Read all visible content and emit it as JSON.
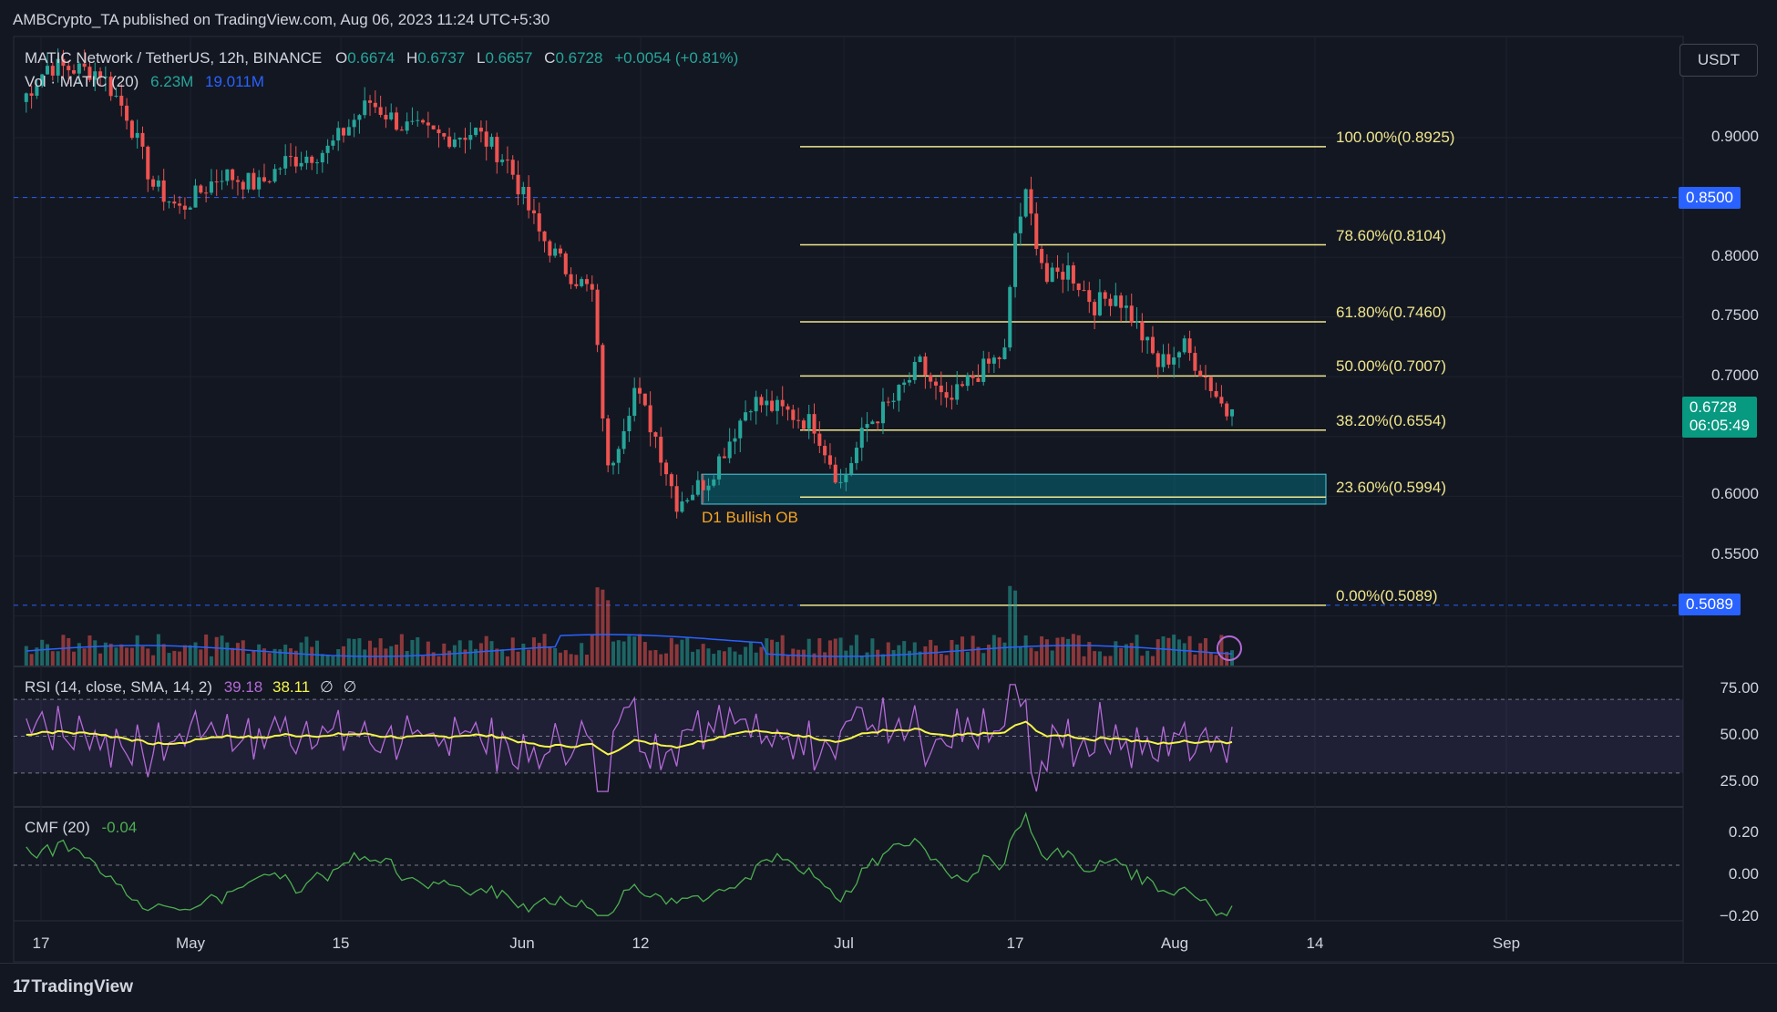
{
  "header": {
    "published": "AMBCrypto_TA published on TradingView.com, Aug 06, 2023 11:24 UTC+5:30",
    "symbol": "MATIC Network / TetherUS, 12h, BINANCE",
    "o_label": "O",
    "o_val": "0.6674",
    "h_label": "H",
    "h_val": "0.6737",
    "l_label": "L",
    "l_val": "0.6657",
    "c_label": "C",
    "c_val": "0.6728",
    "change": "+0.0054 (+0.81%)",
    "vol_label": "Vol · MATIC (20)",
    "vol_val1": "6.23M",
    "vol_val2": "19.011M"
  },
  "currency_button": "USDT",
  "price_axis": {
    "ticks": [
      "0.9000",
      "0.8000",
      "0.7500",
      "0.7000",
      "0.6000",
      "0.5500"
    ],
    "marker_high": "0.8500",
    "marker_low": "0.5089",
    "last_price": "0.6728",
    "countdown": "06:05:49"
  },
  "fib": {
    "levels": [
      {
        "label": "100.00%(0.8925)",
        "value": 0.8925
      },
      {
        "label": "78.60%(0.8104)",
        "value": 0.8104
      },
      {
        "label": "61.80%(0.7460)",
        "value": 0.746
      },
      {
        "label": "50.00%(0.7007)",
        "value": 0.7007
      },
      {
        "label": "38.20%(0.6554)",
        "value": 0.6554
      },
      {
        "label": "23.60%(0.5994)",
        "value": 0.5994
      },
      {
        "label": "0.00%(0.5089)",
        "value": 0.5089
      }
    ]
  },
  "ob_zone": {
    "label": "D1 Bullish OB",
    "top": 0.6185,
    "bottom": 0.5935
  },
  "rsi": {
    "label": "RSI (14, close, SMA, 14, 2)",
    "val1": "39.18",
    "val2": "38.11",
    "val3": "∅",
    "val4": "∅",
    "ticks": [
      "75.00",
      "50.00",
      "25.00"
    ]
  },
  "cmf": {
    "label": "CMF (20)",
    "val": "-0.04",
    "ticks": [
      "0.20",
      "0.00",
      "−0.20"
    ]
  },
  "time_axis": [
    "17",
    "May",
    "15",
    "Jun",
    "12",
    "Jul",
    "17",
    "Aug",
    "14",
    "Sep"
  ],
  "footer": {
    "brand": "TradingView"
  },
  "colors": {
    "bg": "#131722",
    "up": "#26a69a",
    "down": "#ef5350",
    "fib": "#f0e68c",
    "rsi": "#b36ad6",
    "rsi_ma": "#f5f54a",
    "cmf": "#4caf50",
    "vol_ma": "#2962ff",
    "accent": "#2962ff"
  },
  "chart_data": {
    "type": "candlestick",
    "title": "MATIC Network / TetherUS, 12h, BINANCE",
    "ylim": [
      0.46,
      0.97
    ],
    "x_range": [
      "Apr 17 2023",
      "Sep 10 2023"
    ],
    "candles": [
      {
        "t": "May 07",
        "o": 0.955,
        "h": 0.98,
        "l": 0.92,
        "c": 0.93
      },
      {
        "t": "May 11",
        "o": 0.9,
        "h": 0.91,
        "l": 0.83,
        "c": 0.85
      },
      {
        "t": "May 15",
        "o": 0.86,
        "h": 0.88,
        "l": 0.84,
        "c": 0.87
      },
      {
        "t": "May 20",
        "o": 0.87,
        "h": 0.89,
        "l": 0.85,
        "c": 0.86
      },
      {
        "t": "May 26",
        "o": 0.89,
        "h": 0.96,
        "l": 0.87,
        "c": 0.93
      },
      {
        "t": "May 30",
        "o": 0.92,
        "h": 0.94,
        "l": 0.89,
        "c": 0.9
      },
      {
        "t": "Jun 04",
        "o": 0.91,
        "h": 0.915,
        "l": 0.89,
        "c": 0.9
      },
      {
        "t": "Jun 07",
        "o": 0.82,
        "h": 0.83,
        "l": 0.76,
        "c": 0.78
      },
      {
        "t": "Jun 10",
        "o": 0.78,
        "h": 0.79,
        "l": 0.52,
        "c": 0.62
      },
      {
        "t": "Jun 13",
        "o": 0.66,
        "h": 0.72,
        "l": 0.63,
        "c": 0.7
      },
      {
        "t": "Jun 16",
        "o": 0.62,
        "h": 0.63,
        "l": 0.565,
        "c": 0.585
      },
      {
        "t": "Jun 20",
        "o": 0.61,
        "h": 0.64,
        "l": 0.6,
        "c": 0.62
      },
      {
        "t": "Jun 24",
        "o": 0.64,
        "h": 0.71,
        "l": 0.63,
        "c": 0.68
      },
      {
        "t": "Jun 30",
        "o": 0.66,
        "h": 0.67,
        "l": 0.6,
        "c": 0.62
      },
      {
        "t": "Jul 04",
        "o": 0.68,
        "h": 0.72,
        "l": 0.67,
        "c": 0.71
      },
      {
        "t": "Jul 08",
        "o": 0.67,
        "h": 0.68,
        "l": 0.65,
        "c": 0.67
      },
      {
        "t": "Jul 12",
        "o": 0.7,
        "h": 0.75,
        "l": 0.7,
        "c": 0.74
      },
      {
        "t": "Jul 14",
        "o": 0.78,
        "h": 0.8925,
        "l": 0.77,
        "c": 0.85
      },
      {
        "t": "Jul 17",
        "o": 0.8,
        "h": 0.81,
        "l": 0.77,
        "c": 0.78
      },
      {
        "t": "Jul 21",
        "o": 0.76,
        "h": 0.8,
        "l": 0.74,
        "c": 0.78
      },
      {
        "t": "Jul 25",
        "o": 0.74,
        "h": 0.75,
        "l": 0.7,
        "c": 0.71
      },
      {
        "t": "Jul 29",
        "o": 0.72,
        "h": 0.73,
        "l": 0.7,
        "c": 0.71
      },
      {
        "t": "Aug 02",
        "o": 0.69,
        "h": 0.7,
        "l": 0.665,
        "c": 0.67
      },
      {
        "t": "Aug 06",
        "o": 0.6674,
        "h": 0.6737,
        "l": 0.6657,
        "c": 0.6728
      }
    ],
    "fib_levels": [
      0.8925,
      0.8104,
      0.746,
      0.7007,
      0.6554,
      0.5994,
      0.5089
    ],
    "horizontal_lines": [
      0.85,
      0.5089
    ],
    "rsi": {
      "range": [
        15,
        80
      ],
      "last": 39.18,
      "ma": 38.11
    },
    "cmf": {
      "range": [
        -0.25,
        0.3
      ],
      "last": -0.04
    }
  }
}
